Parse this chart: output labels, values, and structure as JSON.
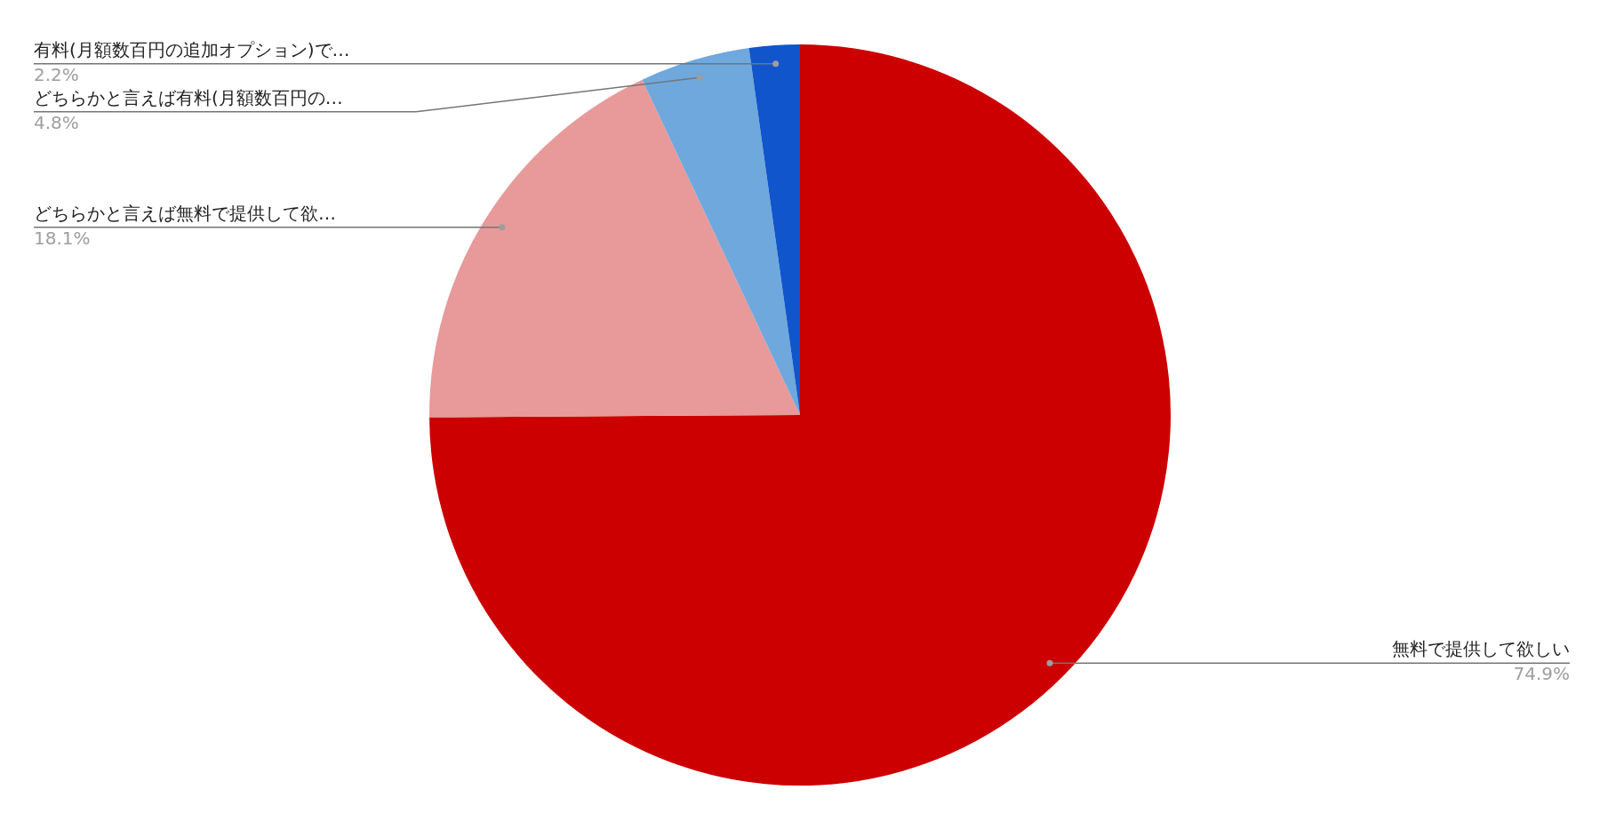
{
  "chart_data": {
    "type": "pie",
    "categories": [
      "無料で提供して欲しい",
      "どちらかと言えば無料で提供して欲…",
      "どちらかと言えば有料(月額数百円の…",
      "有料(月額数百円の追加オプション)で…"
    ],
    "values": [
      74.9,
      18.1,
      4.8,
      2.2
    ],
    "colors": [
      "#cc0000",
      "#e8999a",
      "#6fa8dc",
      "#1155cc"
    ],
    "value_labels": [
      "74.9%",
      "18.1%",
      "4.8%",
      "2.2%"
    ],
    "legend": false
  }
}
